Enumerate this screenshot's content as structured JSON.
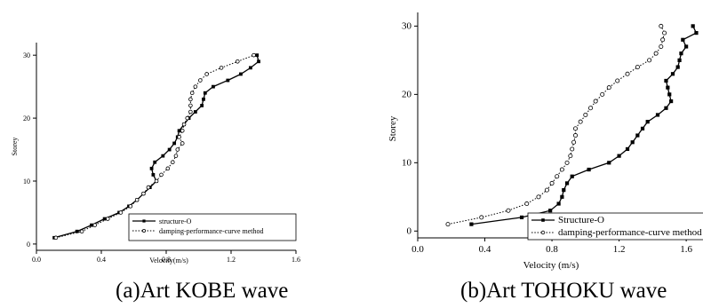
{
  "chart_data": [
    {
      "type": "line",
      "caption": "(a)Art KOBE wave",
      "xlabel": "Velocity(m/s)",
      "ylabel": "Storey",
      "xlim": [
        0.0,
        1.6
      ],
      "ylim": [
        -1,
        32
      ],
      "x_ticks": [
        0.0,
        0.4,
        0.8,
        1.2,
        1.6
      ],
      "x_tick_labels": [
        "0.0",
        "0.4",
        "0.8",
        "1.2",
        "1.6"
      ],
      "y_ticks": [
        0,
        10,
        20,
        30
      ],
      "y_tick_labels": [
        "0",
        "10",
        "20",
        "30"
      ],
      "grid": false,
      "legend_position": "bottom-right",
      "series": [
        {
          "name": "structure-O",
          "line": "solid",
          "marker": "square-filled",
          "color": "#000000",
          "points": [
            [
              0.11,
              1
            ],
            [
              0.25,
              2
            ],
            [
              0.34,
              3
            ],
            [
              0.42,
              4
            ],
            [
              0.51,
              5
            ],
            [
              0.57,
              6
            ],
            [
              0.62,
              7
            ],
            [
              0.66,
              8
            ],
            [
              0.7,
              9
            ],
            [
              0.74,
              10
            ],
            [
              0.72,
              11
            ],
            [
              0.71,
              12
            ],
            [
              0.73,
              13
            ],
            [
              0.78,
              14
            ],
            [
              0.82,
              15
            ],
            [
              0.85,
              16
            ],
            [
              0.87,
              17
            ],
            [
              0.88,
              18
            ],
            [
              0.91,
              19
            ],
            [
              0.94,
              20
            ],
            [
              0.98,
              21
            ],
            [
              1.02,
              22
            ],
            [
              1.03,
              23
            ],
            [
              1.04,
              24
            ],
            [
              1.09,
              25
            ],
            [
              1.18,
              26
            ],
            [
              1.26,
              27
            ],
            [
              1.32,
              28
            ],
            [
              1.37,
              29
            ],
            [
              1.36,
              30
            ]
          ]
        },
        {
          "name": "damping-performance-curve method",
          "line": "dotted",
          "marker": "circle-open",
          "color": "#000000",
          "points": [
            [
              0.12,
              1
            ],
            [
              0.28,
              2
            ],
            [
              0.36,
              3
            ],
            [
              0.44,
              4
            ],
            [
              0.52,
              5
            ],
            [
              0.58,
              6
            ],
            [
              0.62,
              7
            ],
            [
              0.66,
              8
            ],
            [
              0.69,
              9
            ],
            [
              0.74,
              10
            ],
            [
              0.77,
              11
            ],
            [
              0.81,
              12
            ],
            [
              0.84,
              13
            ],
            [
              0.86,
              14
            ],
            [
              0.87,
              15
            ],
            [
              0.9,
              16
            ],
            [
              0.88,
              17
            ],
            [
              0.9,
              18
            ],
            [
              0.91,
              19
            ],
            [
              0.93,
              20
            ],
            [
              0.95,
              21
            ],
            [
              0.95,
              22
            ],
            [
              0.95,
              23
            ],
            [
              0.96,
              24
            ],
            [
              0.98,
              25
            ],
            [
              1.01,
              26
            ],
            [
              1.05,
              27
            ],
            [
              1.14,
              28
            ],
            [
              1.24,
              29
            ],
            [
              1.34,
              30
            ]
          ]
        }
      ]
    },
    {
      "type": "line",
      "caption": "(b)Art TOHOKU wave",
      "xlabel": "Velocity (m/s)",
      "ylabel": "Storey",
      "xlim": [
        0.0,
        1.7
      ],
      "ylim": [
        -1,
        32
      ],
      "x_ticks": [
        0.0,
        0.4,
        0.8,
        1.2,
        1.6
      ],
      "x_tick_labels": [
        "0.0",
        "0.4",
        "0.8",
        "1.2",
        "1.6"
      ],
      "y_ticks": [
        0,
        10,
        20,
        30
      ],
      "y_tick_labels": [
        "0",
        "10",
        "20",
        "30"
      ],
      "grid": false,
      "legend_position": "bottom-right",
      "series": [
        {
          "name": "Structure-O",
          "line": "solid",
          "marker": "square-filled",
          "color": "#000000",
          "points": [
            [
              0.32,
              1
            ],
            [
              0.62,
              2
            ],
            [
              0.79,
              3
            ],
            [
              0.84,
              4
            ],
            [
              0.86,
              5
            ],
            [
              0.87,
              6
            ],
            [
              0.89,
              7
            ],
            [
              0.92,
              8
            ],
            [
              1.02,
              9
            ],
            [
              1.14,
              10
            ],
            [
              1.2,
              11
            ],
            [
              1.25,
              12
            ],
            [
              1.28,
              13
            ],
            [
              1.31,
              14
            ],
            [
              1.34,
              15
            ],
            [
              1.37,
              16
            ],
            [
              1.43,
              17
            ],
            [
              1.48,
              18
            ],
            [
              1.51,
              19
            ],
            [
              1.5,
              20
            ],
            [
              1.49,
              21
            ],
            [
              1.48,
              22
            ],
            [
              1.52,
              23
            ],
            [
              1.55,
              24
            ],
            [
              1.56,
              25
            ],
            [
              1.57,
              26
            ],
            [
              1.6,
              27
            ],
            [
              1.58,
              28
            ],
            [
              1.66,
              29
            ],
            [
              1.64,
              30
            ]
          ]
        },
        {
          "name": "damping-performance-curve method",
          "line": "dotted",
          "marker": "circle-open",
          "color": "#000000",
          "points": [
            [
              0.18,
              1
            ],
            [
              0.38,
              2
            ],
            [
              0.54,
              3
            ],
            [
              0.65,
              4
            ],
            [
              0.72,
              5
            ],
            [
              0.77,
              6
            ],
            [
              0.8,
              7
            ],
            [
              0.83,
              8
            ],
            [
              0.86,
              9
            ],
            [
              0.89,
              10
            ],
            [
              0.91,
              11
            ],
            [
              0.92,
              12
            ],
            [
              0.93,
              13
            ],
            [
              0.94,
              14
            ],
            [
              0.94,
              15
            ],
            [
              0.97,
              16
            ],
            [
              1.0,
              17
            ],
            [
              1.03,
              18
            ],
            [
              1.06,
              19
            ],
            [
              1.1,
              20
            ],
            [
              1.14,
              21
            ],
            [
              1.19,
              22
            ],
            [
              1.25,
              23
            ],
            [
              1.31,
              24
            ],
            [
              1.38,
              25
            ],
            [
              1.42,
              26
            ],
            [
              1.45,
              27
            ],
            [
              1.46,
              28
            ],
            [
              1.47,
              29
            ],
            [
              1.45,
              30
            ]
          ]
        }
      ]
    }
  ]
}
